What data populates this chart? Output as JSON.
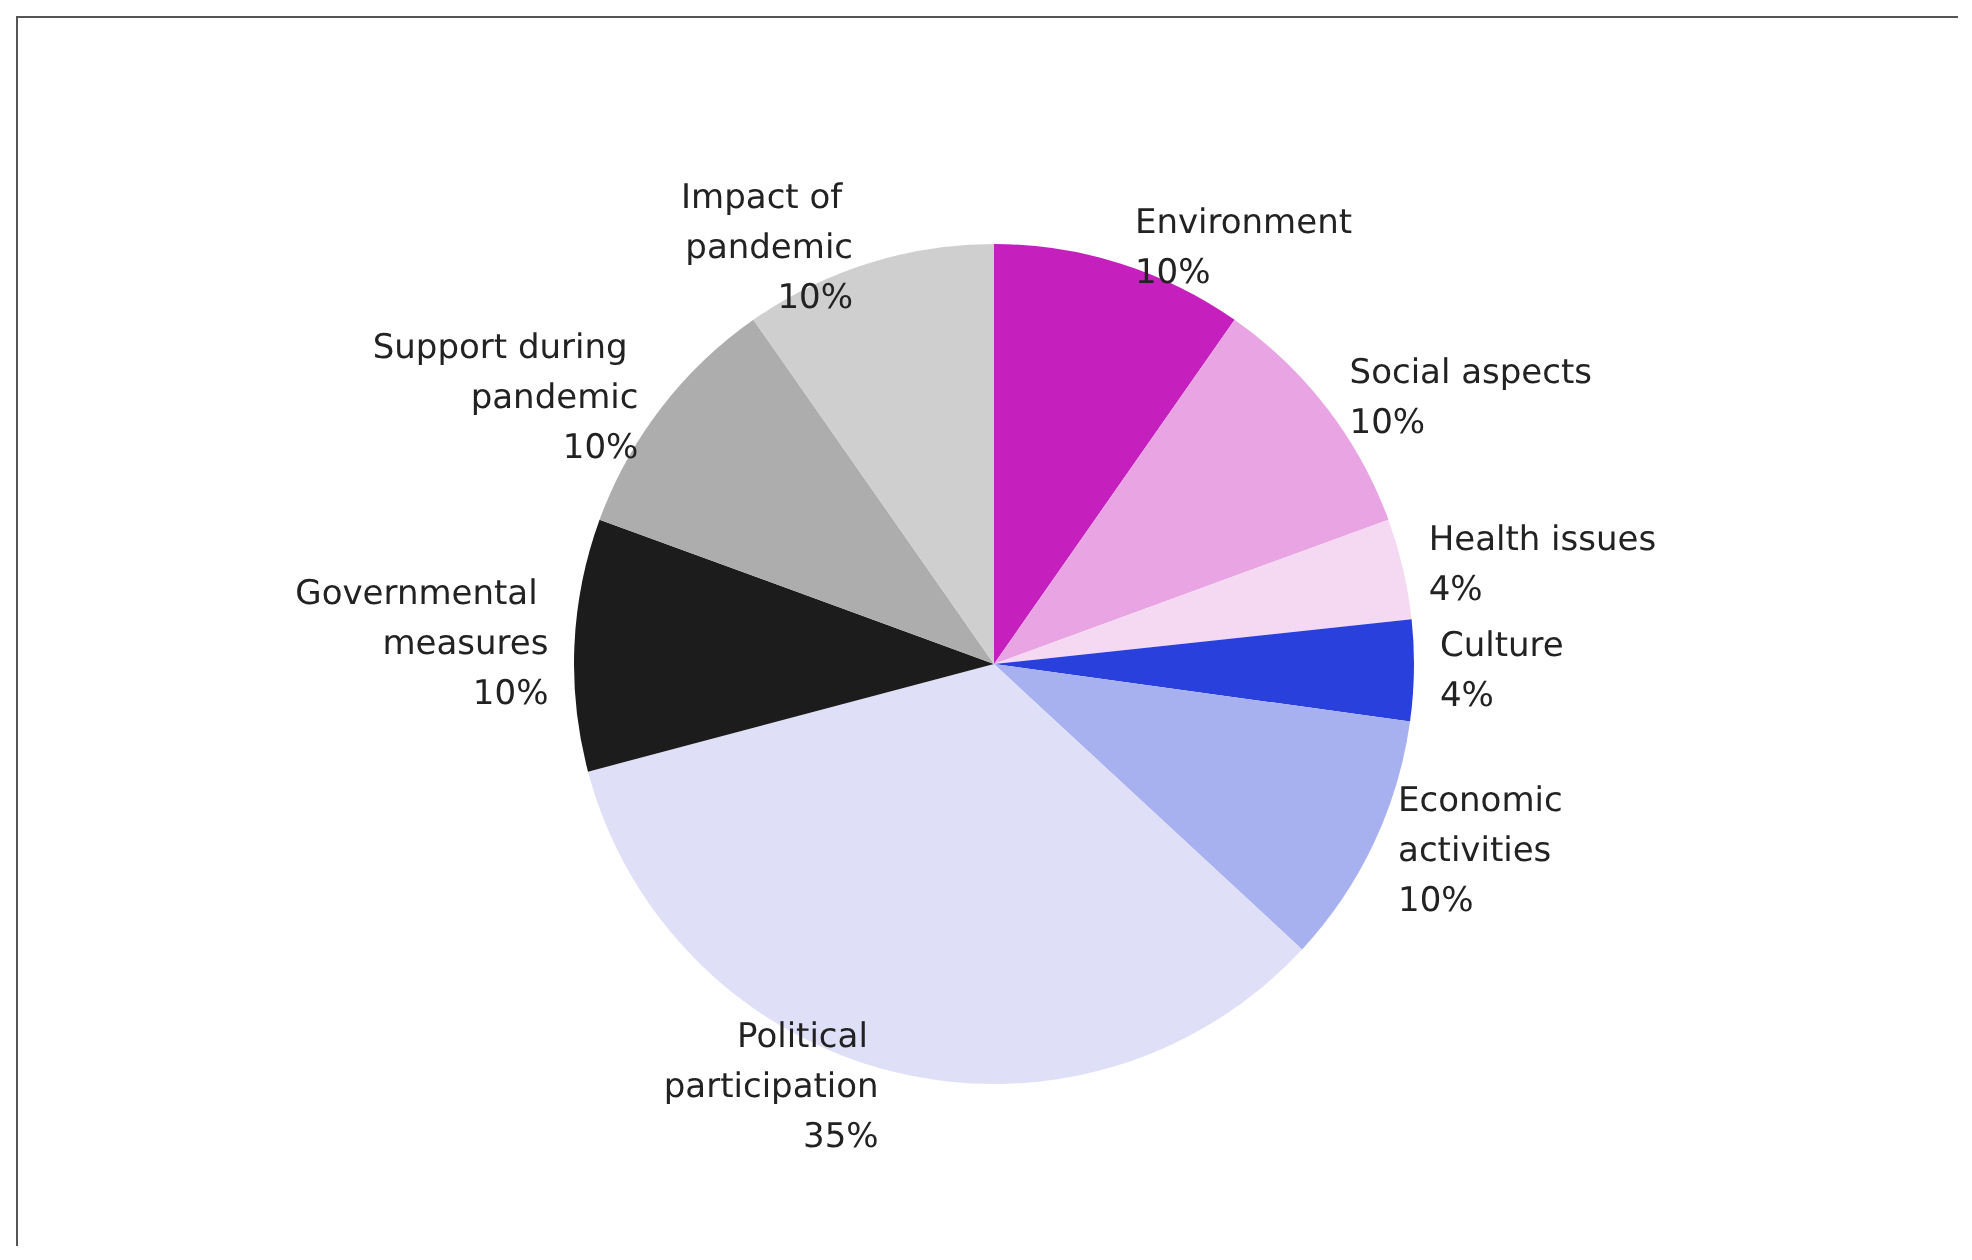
{
  "chart_data": {
    "type": "pie",
    "categories": [
      "Environment",
      "Social aspects",
      "Health issues",
      "Culture",
      "Economic activities",
      "Political participation",
      "Governmental measures",
      "Support during pandemic",
      "Impact of pandemic"
    ],
    "values": [
      10,
      10,
      4,
      4,
      10,
      35,
      10,
      10,
      10
    ],
    "value_labels": [
      "10%",
      "10%",
      "4%",
      "4%",
      "10%",
      "35%",
      "10%",
      "10%",
      "10%"
    ],
    "colors": [
      "#c520bd",
      "#e8a4e3",
      "#f5d9f2",
      "#2940dd",
      "#a8b1f0",
      "#dfe0f8",
      "#1c1c1c",
      "#adadad",
      "#cfcfcf"
    ]
  }
}
